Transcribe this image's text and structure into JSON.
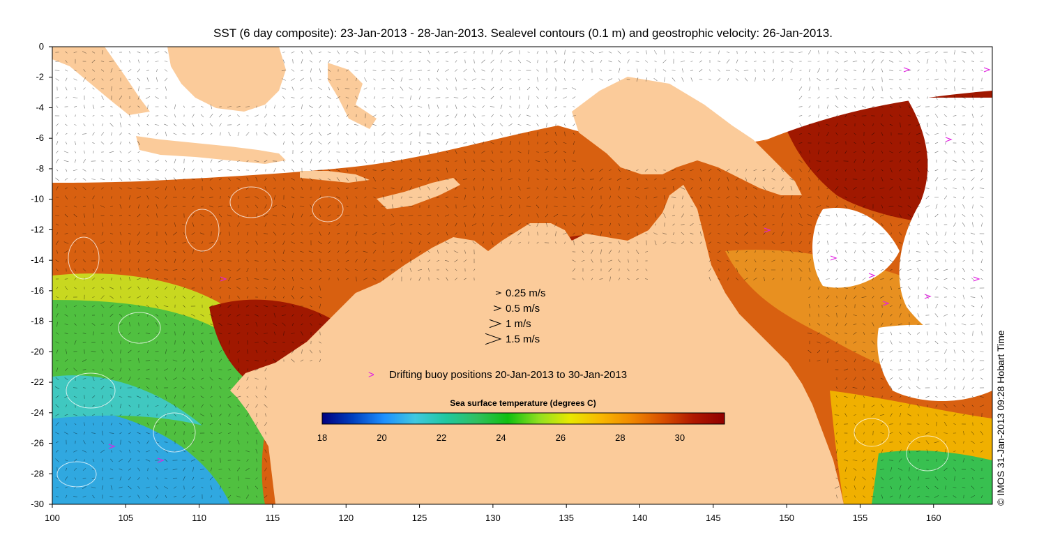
{
  "title": "SST (6 day composite): 23-Jan-2013 - 28-Jan-2013. Sealevel contours (0.1 m) and geostrophic velocity: 26-Jan-2013.",
  "credit": "© IMOS 31-Jan-2013 09:28 Hobart Time",
  "map": {
    "lon_range": [
      100,
      164
    ],
    "lat_range": [
      -30,
      0
    ],
    "x_ticks": [
      "100",
      "105",
      "110",
      "115",
      "120",
      "125",
      "130",
      "135",
      "140",
      "145",
      "150",
      "155",
      "160"
    ],
    "y_ticks": [
      "0",
      "-2",
      "-4",
      "-6",
      "-8",
      "-10",
      "-12",
      "-14",
      "-16",
      "-18",
      "-20",
      "-22",
      "-24",
      "-26",
      "-28",
      "-30"
    ],
    "land_color": "#fbcb9a",
    "cloud_color": "#ffffff"
  },
  "velocity_legend": [
    {
      "label": "0.25 m/s",
      "speed": 0.25
    },
    {
      "label": "0.5 m/s",
      "speed": 0.5
    },
    {
      "label": "1 m/s",
      "speed": 1
    },
    {
      "label": "1.5 m/s",
      "speed": 1.5
    }
  ],
  "buoy_legend": {
    "symbol": ">",
    "label": "Drifting buoy positions 20-Jan-2013 to 30-Jan-2013",
    "color": "#e020e0"
  },
  "colorbar": {
    "title": "Sea surface temperature (degrees C)",
    "range": [
      18,
      31.5
    ],
    "ticks": [
      "18",
      "20",
      "22",
      "24",
      "26",
      "28",
      "30"
    ],
    "colors": [
      "#000080",
      "#0040c0",
      "#1e90ff",
      "#40c8e0",
      "#20c8a0",
      "#30c060",
      "#10c010",
      "#90e020",
      "#e8e800",
      "#f8b800",
      "#f08800",
      "#d85000",
      "#b01800",
      "#900000"
    ]
  }
}
